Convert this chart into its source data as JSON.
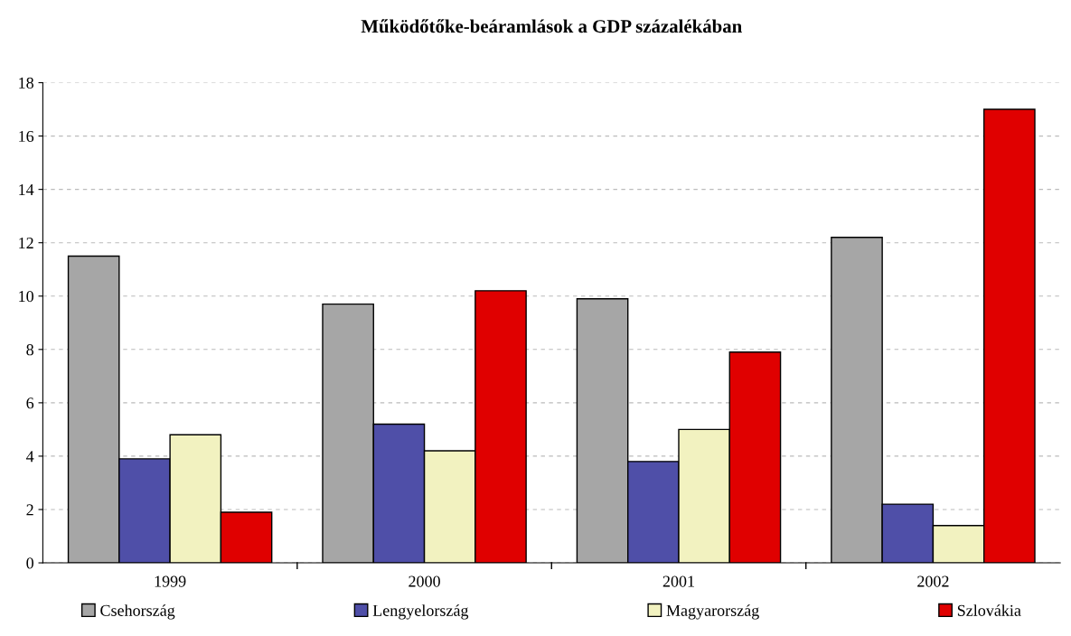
{
  "chart_data": {
    "type": "bar",
    "title": "Működőtőke-beáramlások a GDP százalékában",
    "categories": [
      "1999",
      "2000",
      "2001",
      "2002"
    ],
    "series": [
      {
        "name": "Csehország",
        "color": "#a6a6a6",
        "values": [
          11.5,
          9.7,
          9.9,
          12.2
        ]
      },
      {
        "name": "Lengyelország",
        "color": "#4f4fa8",
        "values": [
          3.9,
          5.2,
          3.8,
          2.2
        ]
      },
      {
        "name": "Magyarország",
        "color": "#f2f2c0",
        "values": [
          4.8,
          4.2,
          5.0,
          1.4
        ]
      },
      {
        "name": "Szlovákia",
        "color": "#e00000",
        "values": [
          1.9,
          10.2,
          7.9,
          17.0
        ]
      }
    ],
    "ylim": [
      0,
      18
    ],
    "yticks": [
      0,
      2,
      4,
      6,
      8,
      10,
      12,
      14,
      16,
      18
    ],
    "grid": "y",
    "legend": "bottom"
  }
}
